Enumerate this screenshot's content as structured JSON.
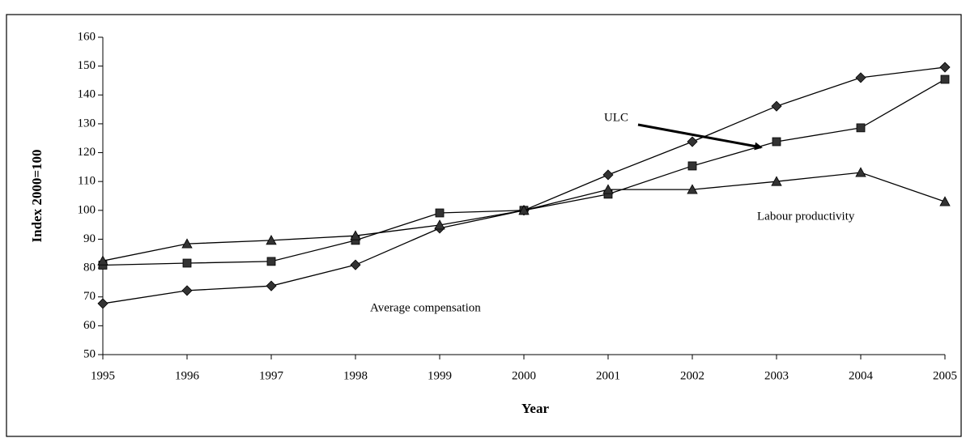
{
  "chart_data": {
    "type": "line",
    "xlabel": "Year",
    "ylabel": "Index 2000=100",
    "x": [
      1995,
      1996,
      1997,
      1998,
      1999,
      2000,
      2001,
      2002,
      2003,
      2004,
      2005
    ],
    "xlim": [
      1995,
      2005
    ],
    "xticks": [
      1995,
      1996,
      1997,
      1998,
      1999,
      2000,
      2001,
      2002,
      2003,
      2004,
      2005
    ],
    "ylim": [
      50,
      160
    ],
    "yticks": [
      50,
      60,
      70,
      80,
      90,
      100,
      110,
      120,
      130,
      140,
      150,
      160
    ],
    "grid": false,
    "series": [
      {
        "name": "Average compensation",
        "color": "#000000",
        "marker": "diamond",
        "values": [
          67.7,
          72.2,
          73.8,
          81.1,
          93.8,
          100,
          112.3,
          123.8,
          136.1,
          146,
          149.6
        ]
      },
      {
        "name": "ULC",
        "color": "#000000",
        "marker": "square",
        "values": [
          81,
          81.7,
          82.3,
          89.6,
          99.1,
          100,
          105.6,
          115.4,
          123.8,
          128.6,
          145.4
        ]
      },
      {
        "name": "Labour productivity",
        "color": "#000000",
        "marker": "triangle",
        "values": [
          82.5,
          88.4,
          89.6,
          91.2,
          94.9,
          100,
          107.2,
          107.2,
          110,
          113.1,
          103
        ]
      }
    ]
  }
}
